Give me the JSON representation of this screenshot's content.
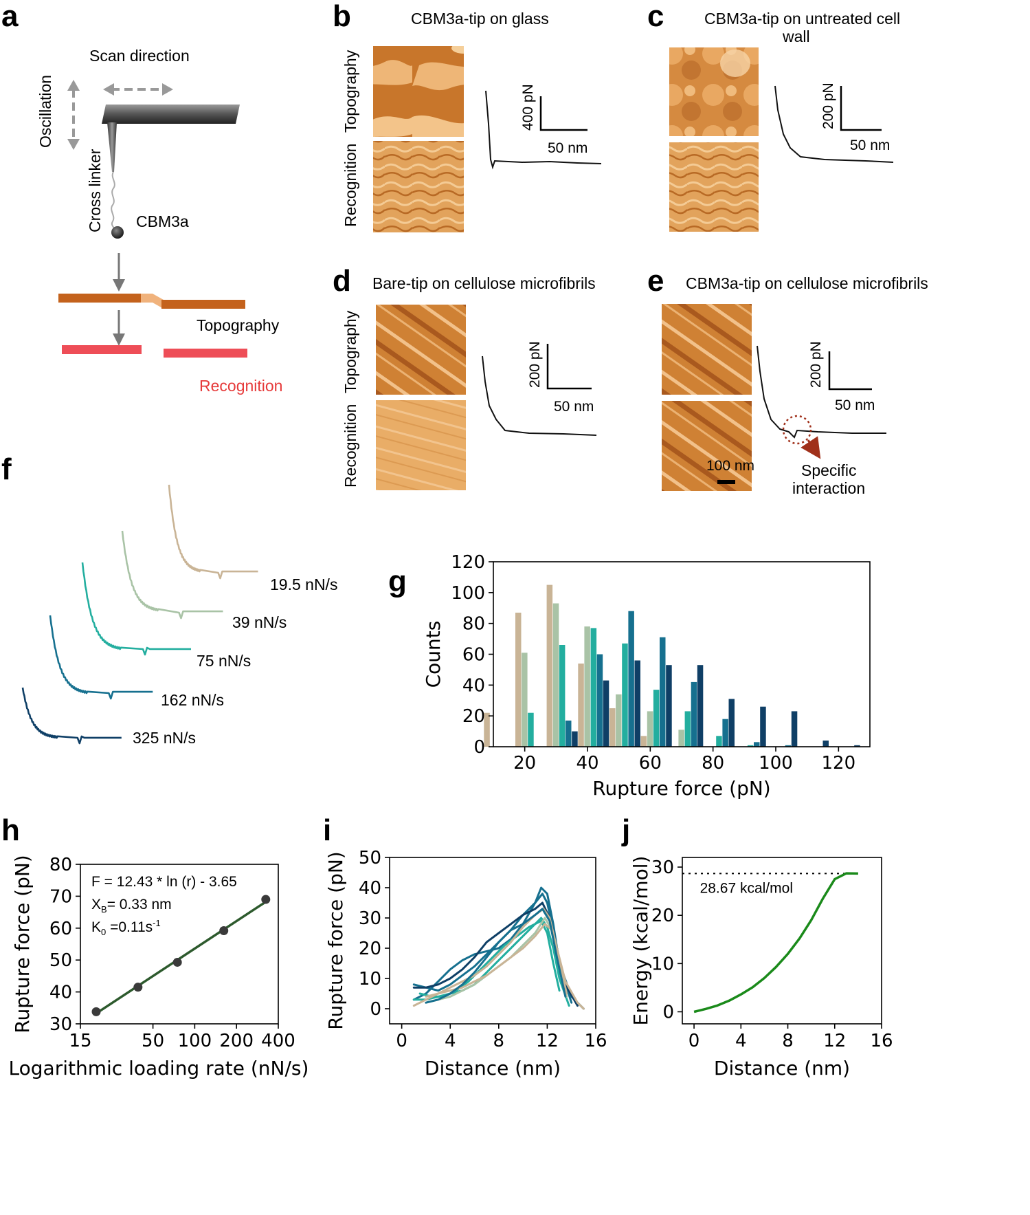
{
  "panels": {
    "a": "a",
    "b": "b",
    "c": "c",
    "d": "d",
    "e": "e",
    "f": "f",
    "g": "g",
    "h": "h",
    "i": "i",
    "j": "j"
  },
  "schematic": {
    "scan_direction": "Scan direction",
    "oscillation": "Oscillation",
    "cross_linker": "Cross linker",
    "molecule": "CBM3a",
    "topography": "Topography",
    "recognition": "Recognition"
  },
  "imaging": {
    "b": {
      "title": "CBM3a-tip on glass",
      "row_top": "Topography",
      "row_bottom": "Recognition",
      "force_scale": "400 pN",
      "distance_scale": "50 nm"
    },
    "c": {
      "title_line1": "CBM3a-tip on untreated cell",
      "title_line2": "wall",
      "force_scale": "200 pN",
      "distance_scale": "50 nm"
    },
    "d": {
      "title": "Bare-tip on cellulose microfibrils",
      "row_top": "Topography",
      "row_bottom": "Recognition",
      "force_scale": "200 pN",
      "distance_scale": "50 nm"
    },
    "e": {
      "title": "CBM3a-tip  on cellulose microfibrils",
      "force_scale": "200 pN",
      "distance_scale": "50 nm",
      "image_scale": "100 nm",
      "annotation_line1": "Specific",
      "annotation_line2": "interaction"
    }
  },
  "colors": {
    "r19_5": "#c9b496",
    "r39": "#a9c3a6",
    "r75": "#23ae9f",
    "r162": "#16708f",
    "r325": "#0f3f66",
    "fit_line": "#2d5a2d",
    "energy": "#1a8a1a",
    "afm_orange": "#d08a3a",
    "recognition_red": "#e63a3a"
  },
  "traces_f": [
    {
      "label": "19.5 nN/s",
      "color": "#c9b496"
    },
    {
      "label": "39 nN/s",
      "color": "#a9c3a6"
    },
    {
      "label": "75 nN/s",
      "color": "#23ae9f"
    },
    {
      "label": "162 nN/s",
      "color": "#16708f"
    },
    {
      "label": "325 nN/s",
      "color": "#0f3f66"
    }
  ],
  "chart_data": [
    {
      "panel": "g",
      "type": "bar",
      "xlabel": "Rupture force (pN)",
      "ylabel": "Counts",
      "xlim": [
        10,
        130
      ],
      "ylim": [
        0,
        120
      ],
      "xticks": [
        20,
        40,
        60,
        80,
        100,
        120
      ],
      "yticks": [
        0,
        20,
        40,
        60,
        80,
        100,
        120
      ],
      "bin_centers": [
        12,
        22,
        32,
        42,
        52,
        62,
        72,
        82,
        92,
        102,
        112,
        122,
        132
      ],
      "series": [
        {
          "name": "19.5 nN/s",
          "values": [
            22,
            87,
            105,
            54,
            25,
            7,
            0,
            0,
            0,
            0,
            0,
            0,
            0
          ]
        },
        {
          "name": "39 nN/s",
          "values": [
            0,
            61,
            93,
            78,
            34,
            23,
            11,
            0,
            0,
            0,
            0,
            0,
            0
          ]
        },
        {
          "name": "75 nN/s",
          "values": [
            0,
            22,
            66,
            77,
            67,
            37,
            23,
            7,
            1,
            0,
            0,
            0,
            0
          ]
        },
        {
          "name": "162 nN/s",
          "values": [
            0,
            0,
            17,
            60,
            88,
            71,
            42,
            18,
            3,
            1,
            0,
            0,
            0
          ]
        },
        {
          "name": "325 nN/s",
          "values": [
            0,
            0,
            10,
            43,
            56,
            53,
            53,
            31,
            26,
            23,
            4,
            1,
            0
          ]
        }
      ]
    },
    {
      "panel": "h",
      "type": "scatter",
      "xscale": "log",
      "xlabel": "Logarithmic loading rate (nN/s)",
      "ylabel": "Rupture force (pN)",
      "xlim": [
        15,
        400
      ],
      "ylim": [
        30,
        80
      ],
      "xticks": [
        15,
        50,
        100,
        200,
        400
      ],
      "yticks": [
        30,
        40,
        50,
        60,
        70,
        80
      ],
      "x": [
        19.5,
        39,
        75,
        162,
        325
      ],
      "y": [
        33.8,
        41.5,
        49.3,
        59.2,
        69.0
      ],
      "fit": {
        "slope": 12.43,
        "intercept": -3.65
      },
      "annotation_eq": "F = 12.43 * ln (r) - 3.65",
      "annotation_xb_prefix": "X",
      "annotation_xb_sub": "B",
      "annotation_xb_suffix": "= 0.33 nm",
      "annotation_k0_prefix": "K",
      "annotation_k0_sub": "0",
      "annotation_k0_suffix": " =0.11s",
      "annotation_k0_sup": "-1"
    },
    {
      "panel": "i",
      "type": "line",
      "xlabel": "Distance (nm)",
      "ylabel": "Rupture force (pN)",
      "xlim": [
        -1,
        16
      ],
      "ylim": [
        -5,
        50
      ],
      "xticks": [
        0,
        4,
        8,
        12,
        16
      ],
      "yticks": [
        0,
        10,
        20,
        30,
        40,
        50
      ],
      "series": [
        {
          "name": "c1",
          "color": "#16708f",
          "x": [
            1,
            2,
            3,
            4,
            5,
            6,
            7,
            8,
            9,
            10,
            11,
            11.5,
            12,
            12.5,
            13,
            14,
            15
          ],
          "y": [
            3,
            5,
            9,
            13,
            16,
            18,
            19,
            20,
            23,
            28,
            35,
            40,
            38,
            28,
            15,
            4,
            0
          ]
        },
        {
          "name": "c2",
          "color": "#16708f",
          "x": [
            1,
            2,
            3,
            4,
            5,
            6,
            7,
            8,
            9,
            10,
            11,
            11.6,
            12,
            12.6,
            13.2,
            14
          ],
          "y": [
            8,
            7,
            6,
            8,
            11,
            14,
            18,
            22,
            26,
            31,
            35,
            38,
            35,
            24,
            12,
            2
          ]
        },
        {
          "name": "c3",
          "color": "#0f3f66",
          "x": [
            1,
            2,
            3,
            4,
            5,
            6,
            7,
            8,
            9,
            10,
            11,
            11.6,
            12.2,
            12.8,
            13.5,
            14.5
          ],
          "y": [
            7,
            7,
            8,
            10,
            13,
            17,
            22,
            25,
            28,
            31,
            33,
            35,
            30,
            20,
            8,
            1
          ]
        },
        {
          "name": "c4",
          "color": "#23ae9f",
          "x": [
            1,
            2,
            3,
            4,
            5,
            6,
            7,
            8,
            9,
            10,
            11,
            11.5,
            12,
            12.5,
            13,
            13.8
          ],
          "y": [
            3,
            3,
            4,
            5,
            6,
            8,
            12,
            16,
            20,
            24,
            28,
            30,
            27,
            20,
            10,
            1
          ]
        },
        {
          "name": "c5",
          "color": "#23ae9f",
          "x": [
            1.5,
            2.5,
            3.5,
            4.5,
            5.5,
            6.5,
            7.5,
            8.5,
            9.5,
            10.5,
            11.5,
            12,
            12.5,
            13
          ],
          "y": [
            5,
            4,
            4,
            6,
            9,
            13,
            17,
            21,
            24,
            27,
            29,
            25,
            15,
            6
          ]
        },
        {
          "name": "c6",
          "color": "#a9c3a6",
          "x": [
            2,
            3,
            4,
            5,
            6,
            7,
            8,
            9,
            10,
            11,
            11.8,
            12.4,
            13,
            13.6
          ],
          "y": [
            2,
            3,
            4,
            6,
            8,
            11,
            14,
            17,
            21,
            25,
            30,
            26,
            14,
            4
          ]
        },
        {
          "name": "c7",
          "color": "#c9b496",
          "x": [
            1,
            2,
            3,
            4,
            5,
            6,
            7,
            8,
            9,
            10,
            11,
            11.7,
            12.2,
            12.8,
            13.5,
            14.5,
            15
          ],
          "y": [
            1,
            3,
            5,
            7,
            9,
            11,
            14,
            18,
            22,
            27,
            31,
            33,
            30,
            20,
            9,
            2,
            0
          ]
        },
        {
          "name": "c8",
          "color": "#c9b496",
          "x": [
            2,
            3,
            4,
            5,
            6,
            7,
            8,
            9,
            10,
            11,
            11.8,
            12.4,
            13,
            13.6
          ],
          "y": [
            4,
            5,
            6,
            7,
            9,
            11,
            14,
            17,
            20,
            24,
            28,
            26,
            16,
            5
          ]
        },
        {
          "name": "c9",
          "color": "#16708f",
          "x": [
            2,
            3,
            4,
            5,
            6,
            7,
            8,
            9,
            10,
            11,
            11.6,
            12.2,
            12.8,
            13.5
          ],
          "y": [
            2,
            3,
            5,
            8,
            12,
            17,
            22,
            26,
            28,
            31,
            33,
            29,
            17,
            4
          ]
        }
      ]
    },
    {
      "panel": "j",
      "type": "line",
      "xlabel": "Distance (nm)",
      "ylabel": "Energy (kcal/mol)",
      "xlim": [
        -1,
        16
      ],
      "ylim": [
        -2.5,
        32
      ],
      "xticks": [
        0,
        4,
        8,
        12,
        16
      ],
      "yticks": [
        0,
        10,
        20,
        30
      ],
      "x": [
        0,
        1,
        2,
        3,
        4,
        5,
        6,
        7,
        8,
        9,
        10,
        11,
        12,
        13,
        14
      ],
      "y": [
        0,
        0.6,
        1.3,
        2.3,
        3.6,
        5.1,
        7.0,
        9.3,
        12.0,
        15.2,
        19.0,
        23.5,
        27.5,
        28.7,
        28.67
      ],
      "threshold": 28.67,
      "annotation": "28.67 kcal/mol"
    }
  ]
}
